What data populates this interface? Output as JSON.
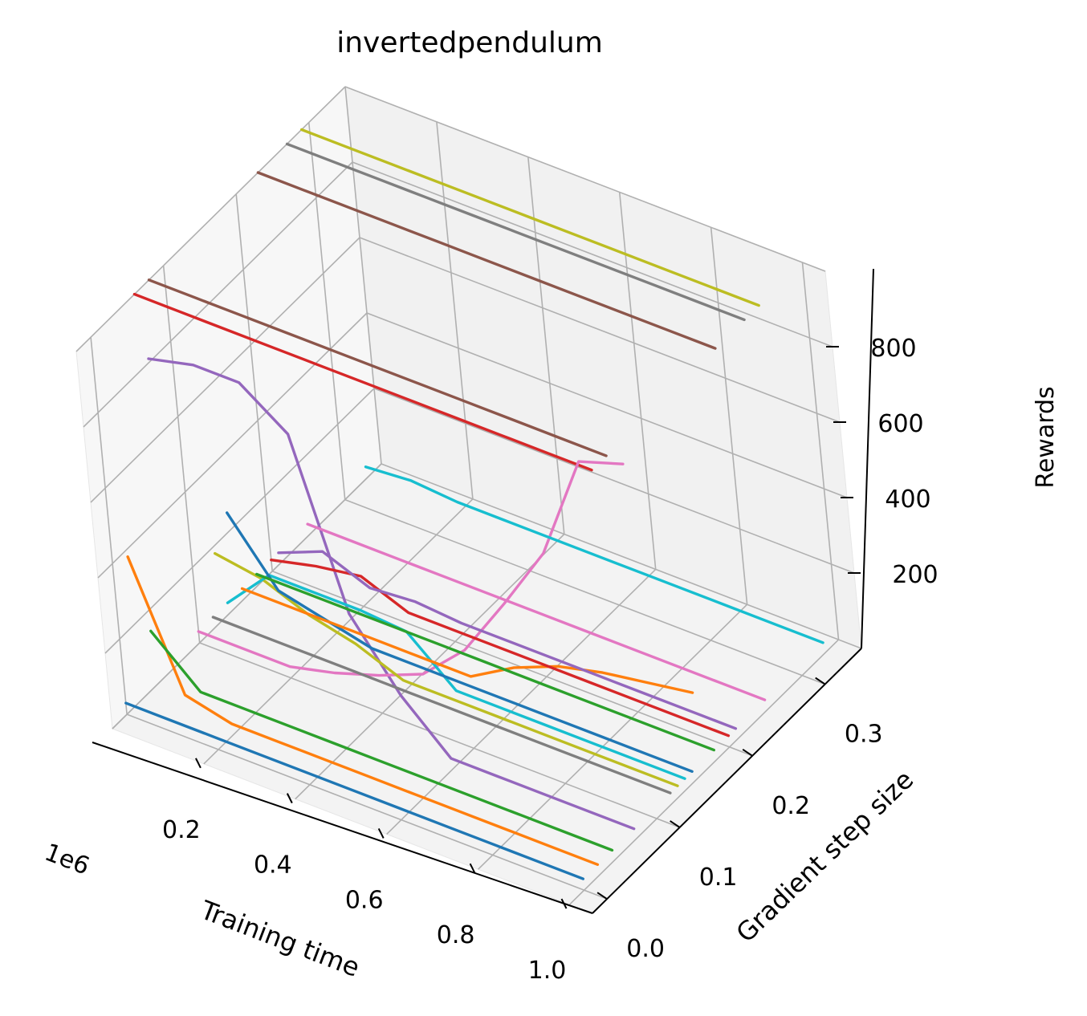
{
  "chart_data": {
    "type": "line",
    "projection": "3d",
    "title": "invertedpendulum",
    "xlabel": "Training time",
    "ylabel": "Gradient step size",
    "zlabel": "Rewards",
    "x_offset_label": "1e6",
    "x_ticks": [
      "0.2",
      "0.4",
      "0.6",
      "0.8",
      "1.0"
    ],
    "y_ticks": [
      "0.0",
      "0.1",
      "0.2",
      "0.3"
    ],
    "z_ticks": [
      "200",
      "400",
      "600",
      "800"
    ],
    "grid": true,
    "colors": [
      "#1f77b4",
      "#ff7f0e",
      "#2ca02c",
      "#d62728",
      "#9467bd",
      "#8c564b",
      "#e377c2",
      "#7f7f7f",
      "#bcbd22",
      "#17becf"
    ],
    "series": [
      {
        "color": "#1f77b4",
        "gradient_step": 0.0,
        "rewards": [
          30,
          30,
          30,
          30,
          30,
          30,
          30,
          30,
          30,
          30,
          30
        ]
      },
      {
        "color": "#ff7f0e",
        "gradient_step": 0.02,
        "rewards": [
          380,
          60,
          30,
          30,
          30,
          30,
          30,
          30,
          30,
          30,
          30
        ]
      },
      {
        "color": "#2ca02c",
        "gradient_step": 0.04,
        "rewards": [
          145,
          30,
          30,
          30,
          30,
          30,
          30,
          30,
          30,
          30,
          30
        ]
      },
      {
        "color": "#d62728",
        "gradient_step": 0.06,
        "rewards": [
          1000,
          1000,
          1000,
          1000,
          1000,
          1000,
          1000,
          1000,
          1000,
          1000,
          1000
        ]
      },
      {
        "color": "#9467bd",
        "gradient_step": 0.07,
        "rewards": [
          810,
          840,
          840,
          750,
          320,
          150,
          30,
          30,
          30,
          30,
          30
        ]
      },
      {
        "color": "#8c564b",
        "gradient_step": 0.08,
        "rewards": [
          1000,
          1000,
          1000,
          1000,
          1000,
          1000,
          1000,
          1000,
          1000,
          1000,
          1000
        ]
      },
      {
        "color": "#e377c2",
        "gradient_step": 0.1,
        "rewards": [
          30,
          30,
          30,
          60,
          100,
          150,
          260,
          430,
          610,
          900,
          940
        ]
      },
      {
        "color": "#7f7f7f",
        "gradient_step": 0.12,
        "rewards": [
          30,
          30,
          30,
          30,
          30,
          30,
          30,
          30,
          30,
          30,
          30
        ]
      },
      {
        "color": "#bcbd22",
        "gradient_step": 0.13,
        "rewards": [
          180,
          160,
          110,
          80,
          30,
          30,
          30,
          30,
          30,
          30,
          30
        ]
      },
      {
        "color": "#17becf",
        "gradient_step": 0.14,
        "rewards": [
          30,
          150,
          150,
          150,
          140,
          30,
          30,
          30,
          30,
          30,
          30
        ]
      },
      {
        "color": "#1f77b4",
        "gradient_step": 0.15,
        "rewards": [
          250,
          90,
          60,
          30,
          30,
          30,
          30,
          30,
          30,
          30,
          30
        ]
      },
      {
        "color": "#ff7f0e",
        "gradient_step": 0.16,
        "rewards": [
          30,
          30,
          30,
          30,
          30,
          30,
          100,
          150,
          180,
          200,
          220
        ]
      },
      {
        "color": "#2ca02c",
        "gradient_step": 0.18,
        "rewards": [
          30,
          30,
          30,
          30,
          30,
          30,
          30,
          30,
          30,
          30,
          30
        ]
      },
      {
        "color": "#d62728",
        "gradient_step": 0.2,
        "rewards": [
          30,
          60,
          80,
          30,
          30,
          30,
          30,
          30,
          30,
          30,
          30
        ]
      },
      {
        "color": "#9467bd",
        "gradient_step": 0.21,
        "rewards": [
          30,
          80,
          30,
          40,
          30,
          30,
          30,
          30,
          30,
          30,
          30
        ]
      },
      {
        "color": "#8c564b",
        "gradient_step": 0.23,
        "rewards": [
          1000,
          1000,
          1000,
          1000,
          1000,
          1000,
          1000,
          1000,
          1000,
          1000,
          1000
        ]
      },
      {
        "color": "#e377c2",
        "gradient_step": 0.25,
        "rewards": [
          30,
          30,
          30,
          30,
          30,
          30,
          30,
          30,
          30,
          30,
          30
        ]
      },
      {
        "color": "#7f7f7f",
        "gradient_step": 0.27,
        "rewards": [
          1000,
          1000,
          1000,
          1000,
          1000,
          1000,
          1000,
          1000,
          1000,
          1000,
          1000
        ]
      },
      {
        "color": "#bcbd22",
        "gradient_step": 0.29,
        "rewards": [
          1000,
          1000,
          1000,
          1000,
          1000,
          1000,
          1000,
          1000,
          1000,
          1000,
          1000
        ]
      },
      {
        "color": "#17becf",
        "gradient_step": 0.33,
        "rewards": [
          30,
          40,
          30,
          30,
          30,
          30,
          30,
          30,
          30,
          30,
          30
        ]
      }
    ],
    "x": [
      0,
      0.1,
      0.2,
      0.3,
      0.4,
      0.5,
      0.6,
      0.7,
      0.8,
      0.9,
      1.0
    ],
    "xlim": [
      0,
      1.05
    ],
    "ylim": [
      -0.02,
      0.35
    ],
    "zlim": [
      0,
      1000
    ]
  }
}
